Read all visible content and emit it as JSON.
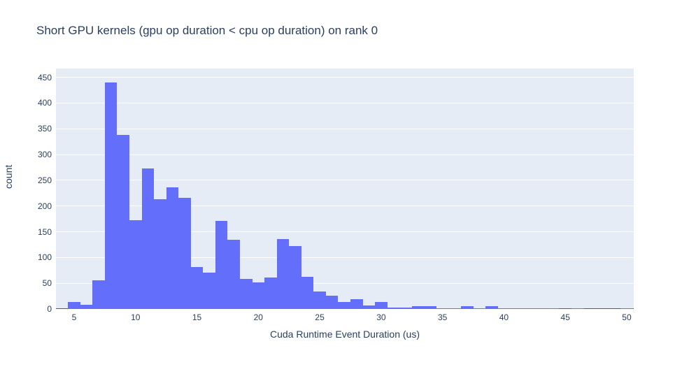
{
  "title": "Short GPU kernels (gpu op duration < cpu op duration) on rank 0",
  "chart_data": {
    "type": "bar",
    "subtype": "histogram",
    "title": "Short GPU kernels (gpu op duration < cpu op duration) on rank 0",
    "xlabel": "Cuda Runtime Event Duration (us)",
    "ylabel": "count",
    "bin_width": 1,
    "bin_centers": [
      5,
      6,
      7,
      8,
      9,
      10,
      11,
      12,
      13,
      14,
      15,
      16,
      17,
      18,
      19,
      20,
      21,
      22,
      23,
      24,
      25,
      26,
      27,
      28,
      29,
      30,
      31,
      32,
      33,
      34,
      35,
      36,
      37,
      38,
      39,
      40,
      41,
      42,
      43,
      44,
      45,
      46,
      47,
      48,
      49,
      50
    ],
    "counts": [
      13,
      8,
      55,
      440,
      338,
      172,
      273,
      213,
      236,
      216,
      82,
      71,
      171,
      134,
      58,
      51,
      61,
      136,
      122,
      63,
      34,
      26,
      14,
      19,
      7,
      14,
      3,
      3,
      5,
      6,
      1,
      1,
      5,
      1,
      5,
      1,
      1,
      1,
      1,
      2,
      0,
      1,
      0,
      0,
      0,
      1
    ],
    "xticks": [
      5,
      10,
      15,
      20,
      25,
      30,
      35,
      40,
      45,
      50
    ],
    "yticks": [
      0,
      50,
      100,
      150,
      200,
      250,
      300,
      350,
      400,
      450
    ],
    "xlim": [
      3.52,
      50.57
    ],
    "ylim": [
      0,
      467
    ],
    "grid": "on",
    "legend": "off",
    "colors": {
      "bar": "#636efa",
      "plot_bg": "#e5ecf6",
      "grid": "#ffffff",
      "text": "#2a3f5f",
      "zeroline": "#4a5b7a",
      "page_bg": "#ffffff"
    }
  }
}
